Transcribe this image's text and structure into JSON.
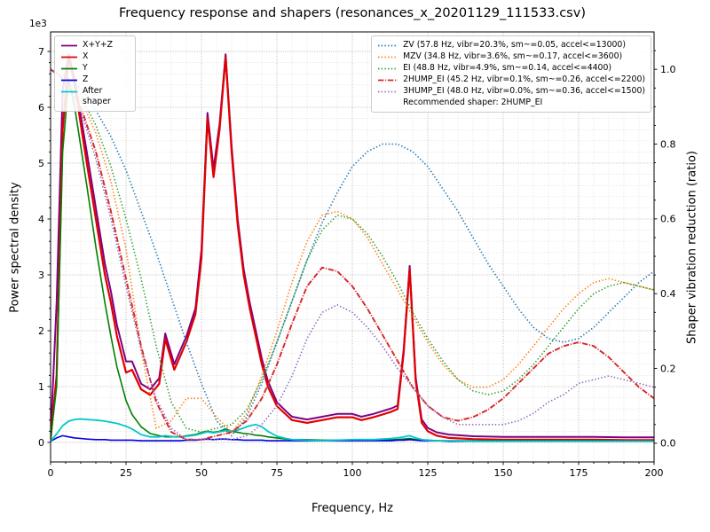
{
  "chart_data": {
    "type": "line",
    "title": "Frequency response and shapers (resonances_x_20201129_111533.csv)",
    "xlabel": "Frequency, Hz",
    "ylabel_left": "Power spectral density",
    "ylabel_right": "Shaper vibration reduction (ratio)",
    "y_left_multiplier": "1e3",
    "recommended": "Recommended shaper: 2HUMP_EI",
    "grid": "on",
    "x_axis": {
      "min": 0,
      "max": 200,
      "ticks": [
        0,
        25,
        50,
        75,
        100,
        125,
        150,
        175,
        200
      ],
      "major_step": 25,
      "minor_step": 5
    },
    "y_left": {
      "ticks": [
        0,
        1,
        2,
        3,
        4,
        5,
        6,
        7
      ],
      "units": "1e3",
      "lim": [
        0,
        7
      ]
    },
    "y_right": {
      "ticks": [
        0,
        0.2,
        0.4,
        0.6,
        0.8,
        1.0
      ],
      "lim": [
        0,
        1.0
      ]
    },
    "psd_x": [
      0,
      2,
      4,
      6,
      8,
      10,
      12,
      15,
      18,
      20,
      22,
      25,
      27,
      30,
      33,
      36,
      38,
      41,
      43,
      45,
      48,
      50,
      52,
      54,
      56,
      58,
      60,
      62,
      64,
      66,
      68,
      70,
      72,
      75,
      78,
      80,
      85,
      90,
      95,
      100,
      103,
      107,
      110,
      113,
      115,
      117,
      119,
      121,
      123,
      125,
      128,
      132,
      140,
      150,
      160,
      170,
      180,
      190,
      200
    ],
    "psd_series": [
      {
        "name": "xyz",
        "label": "X+Y+Z",
        "color": "#800080",
        "style": "solid",
        "values": [
          0.1,
          2.5,
          6.3,
          6.95,
          6.5,
          5.85,
          5.2,
          4.2,
          3.2,
          2.7,
          2.1,
          1.45,
          1.45,
          1.05,
          0.95,
          1.15,
          1.95,
          1.4,
          1.65,
          1.9,
          2.4,
          3.45,
          5.9,
          4.9,
          5.7,
          6.95,
          5.3,
          4.0,
          3.1,
          2.5,
          2.0,
          1.5,
          1.1,
          0.72,
          0.56,
          0.46,
          0.41,
          0.46,
          0.51,
          0.51,
          0.46,
          0.51,
          0.56,
          0.61,
          0.66,
          1.66,
          3.16,
          1.16,
          0.41,
          0.26,
          0.18,
          0.14,
          0.11,
          0.1,
          0.1,
          0.1,
          0.1,
          0.09,
          0.09
        ]
      },
      {
        "name": "x",
        "label": "X",
        "color": "#e00000",
        "style": "solid",
        "values": [
          0.05,
          1.2,
          5.6,
          6.9,
          6.4,
          5.7,
          5.0,
          4.0,
          3.0,
          2.5,
          1.9,
          1.25,
          1.3,
          0.95,
          0.85,
          1.05,
          1.85,
          1.3,
          1.55,
          1.8,
          2.3,
          3.3,
          5.8,
          4.75,
          5.6,
          6.9,
          5.2,
          3.9,
          3.0,
          2.4,
          1.9,
          1.4,
          1.0,
          0.65,
          0.5,
          0.4,
          0.35,
          0.4,
          0.45,
          0.45,
          0.4,
          0.45,
          0.5,
          0.55,
          0.6,
          1.6,
          3.1,
          1.1,
          0.35,
          0.2,
          0.12,
          0.08,
          0.06,
          0.05,
          0.05,
          0.05,
          0.05,
          0.04,
          0.04
        ]
      },
      {
        "name": "y",
        "label": "Y",
        "color": "#008000",
        "style": "solid",
        "values": [
          0.05,
          1.0,
          5.2,
          6.5,
          6.0,
          5.3,
          4.6,
          3.5,
          2.5,
          1.9,
          1.35,
          0.75,
          0.5,
          0.28,
          0.16,
          0.12,
          0.1,
          0.1,
          0.1,
          0.12,
          0.14,
          0.18,
          0.2,
          0.18,
          0.2,
          0.24,
          0.2,
          0.18,
          0.16,
          0.15,
          0.13,
          0.12,
          0.1,
          0.08,
          0.06,
          0.05,
          0.05,
          0.04,
          0.04,
          0.04,
          0.04,
          0.04,
          0.04,
          0.05,
          0.05,
          0.06,
          0.07,
          0.05,
          0.04,
          0.04,
          0.03,
          0.03,
          0.03,
          0.03,
          0.03,
          0.03,
          0.03,
          0.02,
          0.02
        ]
      },
      {
        "name": "z",
        "label": "Z",
        "color": "#0000e0",
        "style": "solid",
        "values": [
          0.02,
          0.08,
          0.12,
          0.1,
          0.08,
          0.07,
          0.06,
          0.05,
          0.05,
          0.04,
          0.04,
          0.04,
          0.04,
          0.03,
          0.03,
          0.03,
          0.03,
          0.03,
          0.03,
          0.04,
          0.04,
          0.05,
          0.06,
          0.05,
          0.06,
          0.06,
          0.05,
          0.05,
          0.04,
          0.04,
          0.04,
          0.04,
          0.03,
          0.03,
          0.03,
          0.03,
          0.03,
          0.03,
          0.03,
          0.03,
          0.03,
          0.03,
          0.03,
          0.03,
          0.04,
          0.04,
          0.05,
          0.04,
          0.03,
          0.03,
          0.03,
          0.02,
          0.02,
          0.02,
          0.02,
          0.02,
          0.02,
          0.02,
          0.02
        ]
      },
      {
        "name": "after",
        "label": "After shaper",
        "color": "#00c8cc",
        "style": "solid",
        "values": [
          0.02,
          0.15,
          0.3,
          0.38,
          0.41,
          0.42,
          0.41,
          0.4,
          0.38,
          0.36,
          0.34,
          0.29,
          0.24,
          0.14,
          0.1,
          0.1,
          0.12,
          0.1,
          0.1,
          0.11,
          0.13,
          0.16,
          0.19,
          0.17,
          0.19,
          0.21,
          0.2,
          0.22,
          0.26,
          0.3,
          0.32,
          0.28,
          0.2,
          0.11,
          0.07,
          0.05,
          0.04,
          0.03,
          0.04,
          0.05,
          0.05,
          0.05,
          0.06,
          0.07,
          0.08,
          0.1,
          0.12,
          0.08,
          0.05,
          0.04,
          0.03,
          0.03,
          0.02,
          0.02,
          0.02,
          0.02,
          0.02,
          0.02,
          0.02
        ]
      }
    ],
    "shaper_x": [
      0,
      5,
      10,
      15,
      20,
      25,
      30,
      35,
      40,
      45,
      50,
      55,
      60,
      65,
      70,
      75,
      80,
      85,
      90,
      95,
      100,
      105,
      110,
      115,
      120,
      125,
      130,
      135,
      140,
      145,
      150,
      155,
      160,
      165,
      170,
      175,
      180,
      185,
      190,
      195,
      200
    ],
    "shaper_series": [
      {
        "name": "ZV",
        "label": "ZV (57.8 Hz, vibr=20.3%, sm~=0.05, accel<=13000)",
        "color": "#1f77b4",
        "style": "dotted",
        "values": [
          1.0,
          0.98,
          0.95,
          0.89,
          0.82,
          0.73,
          0.62,
          0.51,
          0.39,
          0.27,
          0.16,
          0.06,
          0.02,
          0.07,
          0.16,
          0.27,
          0.38,
          0.49,
          0.59,
          0.67,
          0.74,
          0.78,
          0.8,
          0.8,
          0.78,
          0.74,
          0.68,
          0.62,
          0.55,
          0.48,
          0.42,
          0.36,
          0.31,
          0.28,
          0.27,
          0.28,
          0.31,
          0.35,
          0.39,
          0.43,
          0.46
        ]
      },
      {
        "name": "MZV",
        "label": "MZV (34.8 Hz, vibr=3.6%, sm~=0.17, accel<=3600)",
        "color": "#ff7f0e",
        "style": "dotted",
        "values": [
          1.0,
          0.97,
          0.92,
          0.83,
          0.7,
          0.52,
          0.25,
          0.04,
          0.06,
          0.12,
          0.12,
          0.07,
          0.03,
          0.08,
          0.18,
          0.3,
          0.43,
          0.54,
          0.61,
          0.62,
          0.6,
          0.55,
          0.48,
          0.41,
          0.34,
          0.27,
          0.21,
          0.17,
          0.15,
          0.15,
          0.17,
          0.21,
          0.26,
          0.31,
          0.36,
          0.4,
          0.43,
          0.44,
          0.43,
          0.42,
          0.41
        ]
      },
      {
        "name": "EI",
        "label": "EI (48.8 Hz, vibr=4.9%, sm~=0.14, accel<=4400)",
        "color": "#2ca02c",
        "style": "dotted",
        "values": [
          1.0,
          0.98,
          0.93,
          0.85,
          0.74,
          0.6,
          0.44,
          0.26,
          0.11,
          0.04,
          0.03,
          0.04,
          0.05,
          0.09,
          0.17,
          0.27,
          0.38,
          0.49,
          0.57,
          0.61,
          0.6,
          0.56,
          0.5,
          0.43,
          0.35,
          0.28,
          0.22,
          0.17,
          0.14,
          0.13,
          0.14,
          0.17,
          0.21,
          0.26,
          0.31,
          0.36,
          0.4,
          0.42,
          0.43,
          0.42,
          0.41
        ]
      },
      {
        "name": "2HUMP_EI",
        "label": "2HUMP_EI (45.2 Hz, vibr=0.1%, sm~=0.26, accel<=2200)",
        "color": "#d62728",
        "style": "dashdot",
        "values": [
          1.0,
          0.97,
          0.9,
          0.78,
          0.62,
          0.44,
          0.26,
          0.11,
          0.03,
          0.01,
          0.01,
          0.02,
          0.03,
          0.06,
          0.12,
          0.21,
          0.32,
          0.42,
          0.47,
          0.46,
          0.42,
          0.36,
          0.29,
          0.22,
          0.15,
          0.1,
          0.07,
          0.06,
          0.07,
          0.09,
          0.12,
          0.16,
          0.2,
          0.24,
          0.26,
          0.27,
          0.26,
          0.23,
          0.19,
          0.15,
          0.12
        ]
      },
      {
        "name": "3HUMP_EI",
        "label": "3HUMP_EI (48.0 Hz, vibr=0.0%, sm~=0.36, accel<=1500)",
        "color": "#9467bd",
        "style": "dotted",
        "values": [
          1.0,
          0.97,
          0.89,
          0.76,
          0.6,
          0.42,
          0.25,
          0.12,
          0.04,
          0.01,
          0.01,
          0.01,
          0.01,
          0.02,
          0.05,
          0.1,
          0.18,
          0.28,
          0.35,
          0.37,
          0.35,
          0.31,
          0.26,
          0.2,
          0.15,
          0.1,
          0.07,
          0.05,
          0.05,
          0.05,
          0.05,
          0.06,
          0.08,
          0.11,
          0.13,
          0.16,
          0.17,
          0.18,
          0.17,
          0.16,
          0.15
        ]
      }
    ]
  }
}
